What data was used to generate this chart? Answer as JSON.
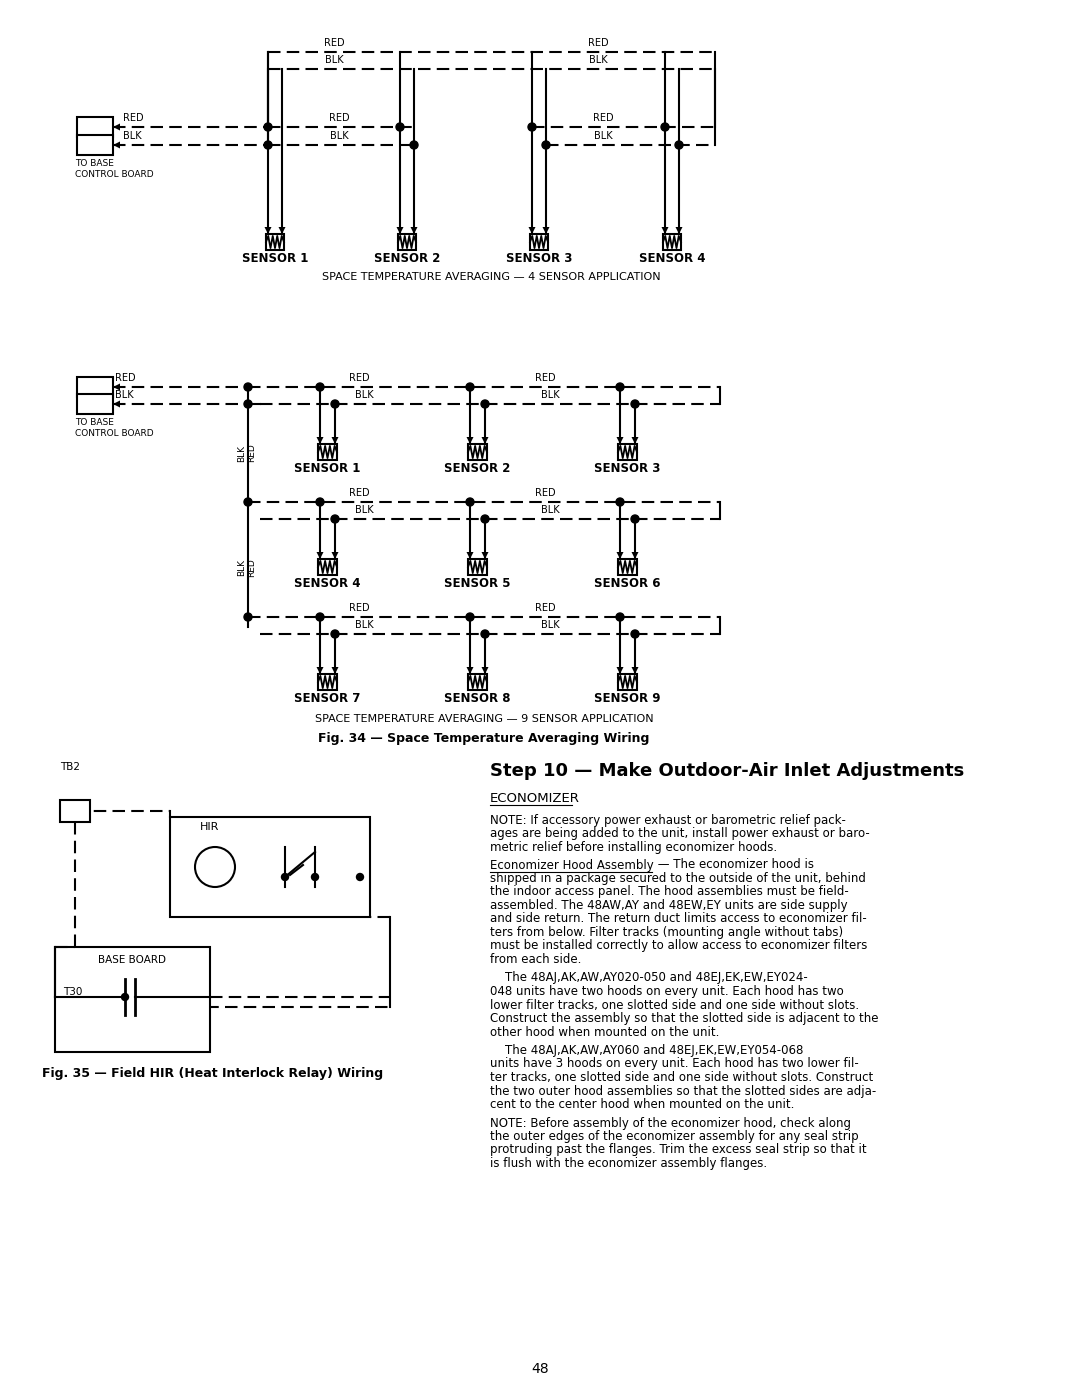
{
  "background_color": "#ffffff",
  "page_number": "48",
  "fig34_caption": "Fig. 34 — Space Temperature Averaging Wiring",
  "fig35_caption": "Fig. 35 — Field HIR (Heat Interlock Relay) Wiring",
  "step10_title": "Step 10 — Make Outdoor-Air Inlet Adjustments",
  "economizer_heading": "ECONOMIZER",
  "4sensor_label": "SPACE TEMPERATURE AVERAGING — 4 SENSOR APPLICATION",
  "9sensor_label": "SPACE TEMPERATURE AVERAGING — 9 SENSOR APPLICATION",
  "note1_lines": [
    "NOTE: If accessory power exhaust or barometric relief pack-",
    "ages are being added to the unit, install power exhaust or baro-",
    "metric relief before installing economizer hoods."
  ],
  "para1_lead": "Economizer Hood Assembly",
  "para1_rest": [
    " — The economizer hood is",
    "shipped in a package secured to the outside of the unit, behind",
    "the indoor access panel. The hood assemblies must be field-",
    "assembled. The 48AW,AY and 48EW,EY units are side supply",
    "and side return. The return duct limits access to economizer fil-",
    "ters from below. Filter tracks (mounting angle without tabs)",
    "must be installed correctly to allow access to economizer filters",
    "from each side."
  ],
  "para2_lines": [
    "    The 48AJ,AK,AW,AY020-050 and 48EJ,EK,EW,EY024-",
    "048 units have two hoods on every unit. Each hood has two",
    "lower filter tracks, one slotted side and one side without slots.",
    "Construct the assembly so that the slotted side is adjacent to the",
    "other hood when mounted on the unit."
  ],
  "para3_lines": [
    "    The 48AJ,AK,AW,AY060 and 48EJ,EK,EW,EY054-068",
    "units have 3 hoods on every unit. Each hood has two lower fil-",
    "ter tracks, one slotted side and one side without slots. Construct",
    "the two outer hood assemblies so that the slotted sides are adja-",
    "cent to the center hood when mounted on the unit."
  ],
  "note2_lines": [
    "NOTE: Before assembly of the economizer hood, check along",
    "the outer edges of the economizer assembly for any seal strip",
    "protruding past the flanges. Trim the excess seal strip so that it",
    "is flush with the economizer assembly flanges."
  ]
}
